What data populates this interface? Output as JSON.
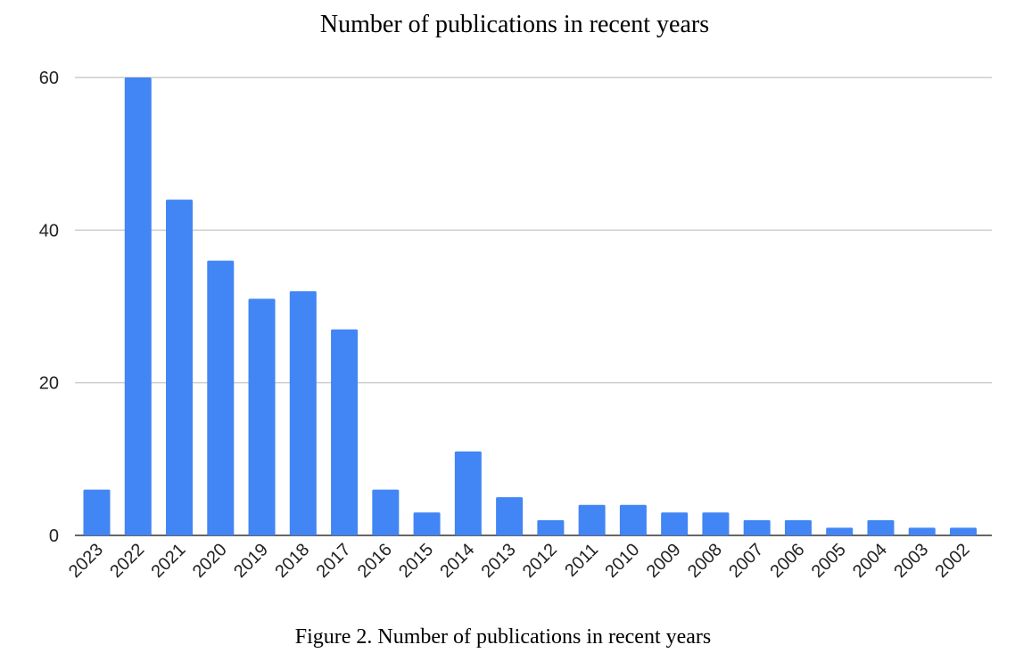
{
  "title": "Number of publications in recent years",
  "caption": "Figure 2. Number of publications in recent years",
  "chart_data": {
    "type": "bar",
    "title": "Number of publications in recent years",
    "xlabel": "",
    "ylabel": "",
    "categories": [
      "2023",
      "2022",
      "2021",
      "2020",
      "2019",
      "2018",
      "2017",
      "2016",
      "2015",
      "2014",
      "2013",
      "2012",
      "2011",
      "2010",
      "2009",
      "2008",
      "2007",
      "2006",
      "2005",
      "2004",
      "2003",
      "2002"
    ],
    "values": [
      6,
      60,
      44,
      36,
      31,
      32,
      27,
      6,
      3,
      11,
      5,
      2,
      4,
      4,
      3,
      3,
      2,
      2,
      1,
      2,
      1,
      1
    ],
    "ylim": [
      0,
      60
    ],
    "yticks": [
      0,
      20,
      40,
      60
    ],
    "grid": true,
    "bar_color": "#4285f4"
  }
}
